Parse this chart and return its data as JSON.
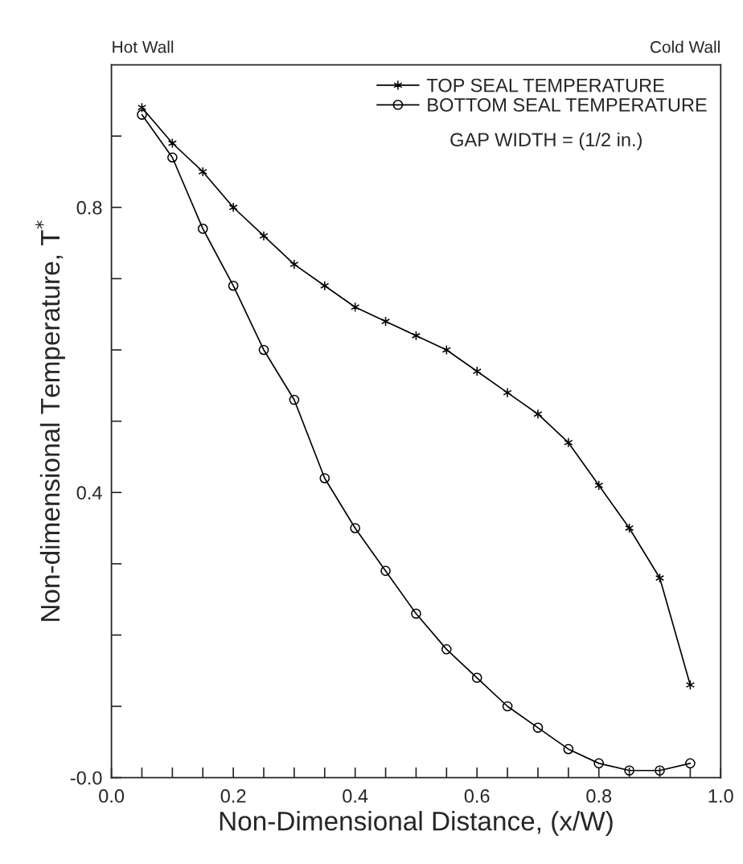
{
  "chart_data": {
    "type": "line",
    "xlabel": "Non-Dimensional Distance, (x/W)",
    "ylabel": "Non-dimensional Temperature, T$^{*}$",
    "x": [
      0.05,
      0.1,
      0.15,
      0.2,
      0.25,
      0.3,
      0.35,
      0.4,
      0.45,
      0.5,
      0.55,
      0.6,
      0.65,
      0.7,
      0.75,
      0.8,
      0.85,
      0.9,
      0.95
    ],
    "series": [
      {
        "name": "TOP SEAL TEMPERATURE",
        "color": "#000000",
        "marker": "cross",
        "values": [
          0.94,
          0.89,
          0.85,
          0.8,
          0.76,
          0.72,
          0.69,
          0.66,
          0.64,
          0.62,
          0.6,
          0.57,
          0.54,
          0.51,
          0.47,
          0.41,
          0.35,
          0.28,
          0.13
        ]
      },
      {
        "name": "BOTTOM SEAL TEMPERATURE",
        "color": "#000000",
        "marker": "circle",
        "values": [
          0.93,
          0.87,
          0.77,
          0.69,
          0.6,
          0.53,
          0.42,
          0.35,
          0.29,
          0.23,
          0.18,
          0.14,
          0.1,
          0.07,
          0.04,
          0.02,
          0.01,
          0.01,
          0.02
        ]
      }
    ],
    "annotations": [
      "GAP WIDTH = (1/2 in.)",
      "Hot Wall",
      "Cold Wall"
    ],
    "xlim": [
      0.0,
      1.0
    ],
    "xticks": [
      {
        "value": 0.0,
        "label": "0.0"
      },
      {
        "value": 0.05,
        "label": null
      },
      0.2,
      {
        "value": 0.1,
        "label": null
      },
      {
        "value": 0.15,
        "label": null
      },
      {
        "value": 0.25,
        "label": null
      },
      {
        "value": 0.3,
        "label": null
      },
      {
        "value": 0.35,
        "label": null
      },
      0.4,
      {
        "value": 0.45,
        "label": null
      },
      {
        "value": 0.5,
        "label": null
      },
      {
        "value": 0.55,
        "label": null
      },
      0.6,
      {
        "value": 0.65,
        "label": null
      },
      {
        "value": 0.7,
        "label": null
      },
      {
        "value": 0.75,
        "label": null
      },
      0.8,
      {
        "value": 0.85,
        "label": null
      },
      {
        "value": 0.9,
        "label": null
      },
      {
        "value": 0.95,
        "label": null
      },
      {
        "value": 1.0,
        "label": "1.0"
      }
    ],
    "ylim": [
      0.0,
      1.0
    ],
    "yticks": [
      {
        "value": 0.0,
        "label": "-0.0"
      },
      {
        "value": 0.1,
        "label": null
      },
      {
        "value": 0.2,
        "label": null
      },
      {
        "value": 0.3,
        "label": null
      },
      0.4,
      {
        "value": 0.5,
        "label": null
      },
      {
        "value": 0.6,
        "label": null
      },
      {
        "value": 0.7,
        "label": null
      },
      0.8,
      {
        "value": 0.9,
        "label": null
      }
    ],
    "grid": false,
    "legend": "top right",
    "line_style": "solid"
  }
}
